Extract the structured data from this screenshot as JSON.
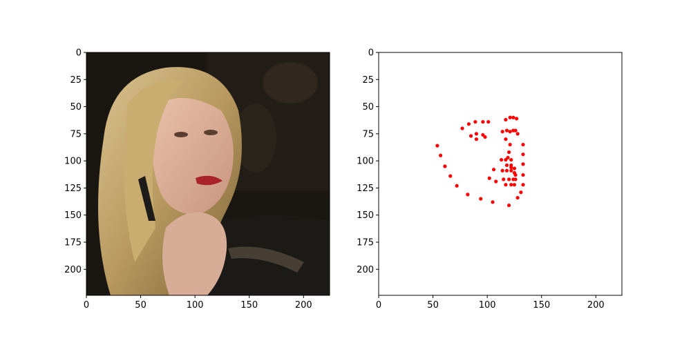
{
  "chart_data": [
    {
      "type": "image",
      "xlim": [
        0,
        224
      ],
      "ylim": [
        224,
        0
      ],
      "x_ticks": [
        0,
        50,
        100,
        150,
        200
      ],
      "y_ticks": [
        0,
        25,
        50,
        75,
        100,
        125,
        150,
        175,
        200
      ],
      "image_icon": "face-photo"
    },
    {
      "type": "scatter",
      "xlim": [
        0,
        224
      ],
      "ylim": [
        224,
        0
      ],
      "x_ticks": [
        0,
        50,
        100,
        150,
        200
      ],
      "y_ticks": [
        0,
        25,
        50,
        75,
        100,
        125,
        150,
        175,
        200
      ],
      "marker_color": "#ff0000",
      "series": [
        {
          "points": [
            [
              54,
              86
            ],
            [
              57,
              95
            ],
            [
              61,
              105
            ],
            [
              66,
              114
            ],
            [
              72,
              123
            ],
            [
              82,
              131
            ],
            [
              94,
              135
            ],
            [
              105,
              138
            ],
            [
              120,
              141
            ],
            [
              128,
              134
            ],
            [
              131,
              129
            ],
            [
              133,
              122
            ],
            [
              133,
              113
            ],
            [
              133,
              103
            ],
            [
              133,
              94
            ],
            [
              133,
              85
            ],
            [
              77,
              70
            ],
            [
              83,
              66
            ],
            [
              89,
              64
            ],
            [
              96,
              64
            ],
            [
              101,
              64
            ],
            [
              117,
              62
            ],
            [
              121,
              60
            ],
            [
              124,
              60
            ],
            [
              127,
              61
            ],
            [
              85,
              77
            ],
            [
              90,
              75
            ],
            [
              90,
              80
            ],
            [
              96,
              76
            ],
            [
              98,
              78
            ],
            [
              114,
              73
            ],
            [
              118,
              72
            ],
            [
              121,
              73
            ],
            [
              124,
              72
            ],
            [
              126,
              72
            ],
            [
              128,
              75
            ],
            [
              117,
              80
            ],
            [
              121,
              85
            ],
            [
              120,
              92
            ],
            [
              119,
              97
            ],
            [
              113,
              99
            ],
            [
              117,
              99
            ],
            [
              122,
              99
            ],
            [
              118,
              104
            ],
            [
              122,
              104
            ],
            [
              125,
              107
            ],
            [
              114,
              109
            ],
            [
              118,
              109
            ],
            [
              122,
              109
            ],
            [
              106,
              108
            ],
            [
              125,
              111
            ],
            [
              126,
              113
            ],
            [
              102,
              116
            ],
            [
              115,
              117
            ],
            [
              120,
              117
            ],
            [
              124,
              117
            ],
            [
              126,
              117
            ],
            [
              108,
              119
            ],
            [
              117,
              122
            ],
            [
              122,
              122
            ],
            [
              125,
              122
            ],
            [
              122,
              106
            ]
          ]
        }
      ]
    }
  ]
}
